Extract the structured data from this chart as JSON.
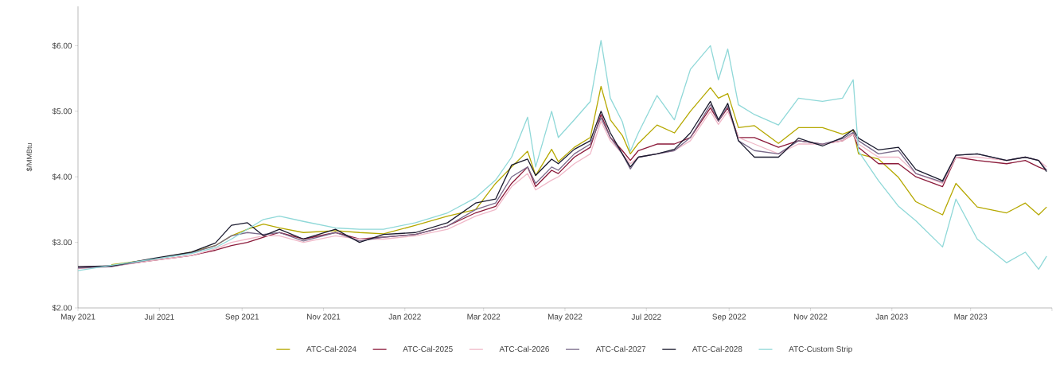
{
  "chart_data": {
    "type": "line",
    "ylabel": "$/MMBtu",
    "x": [
      "2021-05-01",
      "2021-05-26",
      "2021-06-25",
      "2021-07-25",
      "2021-08-12",
      "2021-08-24",
      "2021-09-05",
      "2021-09-17",
      "2021-09-29",
      "2021-10-17",
      "2021-11-10",
      "2021-11-28",
      "2021-12-16",
      "2022-01-09",
      "2022-02-02",
      "2022-02-23",
      "2022-03-10",
      "2022-03-22",
      "2022-04-03",
      "2022-04-09",
      "2022-04-21",
      "2022-04-26",
      "2022-05-08",
      "2022-05-20",
      "2022-05-28",
      "2022-06-04",
      "2022-06-13",
      "2022-06-19",
      "2022-06-25",
      "2022-07-09",
      "2022-07-22",
      "2022-08-03",
      "2022-08-18",
      "2022-08-24",
      "2022-08-31",
      "2022-09-08",
      "2022-09-20",
      "2022-10-08",
      "2022-10-23",
      "2022-11-10",
      "2022-11-25",
      "2022-12-03",
      "2022-12-07",
      "2022-12-22",
      "2023-01-06",
      "2023-01-19",
      "2023-02-08",
      "2023-02-18",
      "2023-03-06",
      "2023-03-28",
      "2023-04-11",
      "2023-04-21",
      "2023-04-27"
    ],
    "series": [
      {
        "name": "ATC-Cal-2024",
        "color": "#b5a800",
        "values": [
          null,
          2.66,
          2.74,
          2.85,
          2.95,
          3.1,
          3.2,
          3.28,
          3.22,
          3.15,
          3.18,
          3.15,
          3.13,
          3.26,
          3.4,
          3.5,
          3.9,
          4.15,
          4.39,
          4.02,
          4.42,
          4.23,
          4.45,
          4.6,
          5.38,
          4.87,
          4.63,
          4.35,
          4.51,
          4.79,
          4.67,
          5.0,
          5.36,
          5.2,
          5.27,
          4.75,
          4.78,
          4.51,
          4.75,
          4.75,
          4.65,
          4.71,
          4.35,
          4.27,
          3.99,
          3.62,
          3.42,
          3.9,
          3.54,
          3.45,
          3.6,
          3.42,
          3.54
        ]
      },
      {
        "name": "ATC-Cal-2025",
        "color": "#8b1a3a",
        "values": [
          2.62,
          2.64,
          2.72,
          2.8,
          2.88,
          2.95,
          3.0,
          3.08,
          3.15,
          3.05,
          3.15,
          3.05,
          3.08,
          3.12,
          3.25,
          3.45,
          3.55,
          3.9,
          4.15,
          3.85,
          4.1,
          4.05,
          4.3,
          4.45,
          4.95,
          4.6,
          4.4,
          4.25,
          4.4,
          4.5,
          4.5,
          4.6,
          5.05,
          4.85,
          5.05,
          4.6,
          4.6,
          4.45,
          4.55,
          4.5,
          4.55,
          4.65,
          4.45,
          4.2,
          4.2,
          4.0,
          3.85,
          4.3,
          4.25,
          4.2,
          4.25,
          4.15,
          4.1
        ]
      },
      {
        "name": "ATC-Cal-2026",
        "color": "#f0b8c8",
        "values": [
          2.6,
          2.63,
          2.72,
          2.8,
          2.9,
          3.0,
          3.05,
          3.1,
          3.1,
          3.0,
          3.1,
          3.05,
          3.05,
          3.1,
          3.2,
          3.4,
          3.5,
          3.85,
          4.05,
          3.8,
          3.95,
          4.0,
          4.2,
          4.35,
          4.85,
          4.55,
          4.35,
          4.2,
          4.3,
          4.35,
          4.4,
          4.55,
          5.0,
          4.8,
          5.0,
          4.6,
          4.5,
          4.35,
          4.5,
          4.5,
          4.55,
          4.65,
          4.5,
          4.3,
          4.3,
          4.05,
          3.9,
          4.3,
          4.3,
          4.25,
          4.3,
          4.25,
          4.15
        ]
      },
      {
        "name": "ATC-Cal-2027",
        "color": "#7a6a8a",
        "values": [
          2.61,
          2.63,
          2.74,
          2.84,
          2.95,
          3.1,
          3.15,
          3.12,
          3.15,
          3.02,
          3.15,
          3.02,
          3.08,
          3.12,
          3.25,
          3.5,
          3.6,
          4.0,
          4.15,
          3.9,
          4.15,
          4.1,
          4.35,
          4.5,
          4.9,
          4.6,
          4.35,
          4.12,
          4.3,
          4.35,
          4.4,
          4.6,
          5.1,
          4.85,
          5.08,
          4.55,
          4.4,
          4.35,
          4.55,
          4.5,
          4.58,
          4.68,
          4.55,
          4.35,
          4.4,
          4.05,
          3.92,
          4.33,
          4.35,
          4.25,
          4.3,
          4.25,
          4.1
        ]
      },
      {
        "name": "ATC-Cal-2028",
        "color": "#1a1a2e",
        "values": [
          2.63,
          2.64,
          2.75,
          2.85,
          2.99,
          3.26,
          3.3,
          3.1,
          3.2,
          3.05,
          3.2,
          3.0,
          3.12,
          3.15,
          3.3,
          3.6,
          3.66,
          4.18,
          4.27,
          4.02,
          4.27,
          4.2,
          4.42,
          4.55,
          5.0,
          4.67,
          4.35,
          4.15,
          4.3,
          4.35,
          4.42,
          4.67,
          5.15,
          4.87,
          5.12,
          4.55,
          4.3,
          4.3,
          4.59,
          4.47,
          4.6,
          4.72,
          4.59,
          4.41,
          4.45,
          4.11,
          3.94,
          4.33,
          4.35,
          4.25,
          4.3,
          4.25,
          4.08
        ]
      },
      {
        "name": "ATC-Custom Strip",
        "color": "#8fd8d8",
        "values": [
          2.57,
          2.65,
          2.74,
          2.83,
          2.92,
          3.05,
          3.2,
          3.35,
          3.4,
          3.32,
          3.22,
          3.2,
          3.2,
          3.3,
          3.45,
          3.68,
          3.95,
          4.3,
          4.91,
          4.15,
          5.0,
          4.6,
          4.87,
          5.15,
          6.08,
          5.2,
          4.84,
          4.39,
          4.67,
          5.24,
          4.87,
          5.64,
          6.0,
          5.48,
          5.95,
          5.1,
          4.95,
          4.79,
          5.2,
          5.15,
          5.2,
          5.48,
          4.39,
          3.94,
          3.55,
          3.33,
          2.93,
          3.66,
          3.05,
          2.69,
          2.85,
          2.59,
          2.79
        ]
      }
    ],
    "xlim": [
      "2021-05-01",
      "2023-05-01"
    ],
    "xticks": [
      {
        "value": "2021-05-01",
        "label": "May 2021"
      },
      {
        "value": "2021-07-01",
        "label": "Jul 2021"
      },
      {
        "value": "2021-09-01",
        "label": "Sep 2021"
      },
      {
        "value": "2021-11-01",
        "label": "Nov 2021"
      },
      {
        "value": "2022-01-01",
        "label": "Jan 2022"
      },
      {
        "value": "2022-03-01",
        "label": "Mar 2022"
      },
      {
        "value": "2022-05-01",
        "label": "May 2022"
      },
      {
        "value": "2022-07-01",
        "label": "Jul 2022"
      },
      {
        "value": "2022-09-01",
        "label": "Sep 2022"
      },
      {
        "value": "2022-11-01",
        "label": "Nov 2022"
      },
      {
        "value": "2023-01-01",
        "label": "Jan 2023"
      },
      {
        "value": "2023-03-01",
        "label": "Mar 2023"
      },
      {
        "value": "2023-05-01",
        "label": null
      }
    ],
    "ylim": [
      2,
      6.6
    ],
    "yticks": [
      {
        "value": 2,
        "label": "$2.00"
      },
      {
        "value": 3,
        "label": "$3.00"
      },
      {
        "value": 4,
        "label": "$4.00"
      },
      {
        "value": 5,
        "label": "$5.00"
      },
      {
        "value": 6,
        "label": "$6.00"
      }
    ],
    "legend": "bottom",
    "marker": "none",
    "line_style": "solid"
  }
}
